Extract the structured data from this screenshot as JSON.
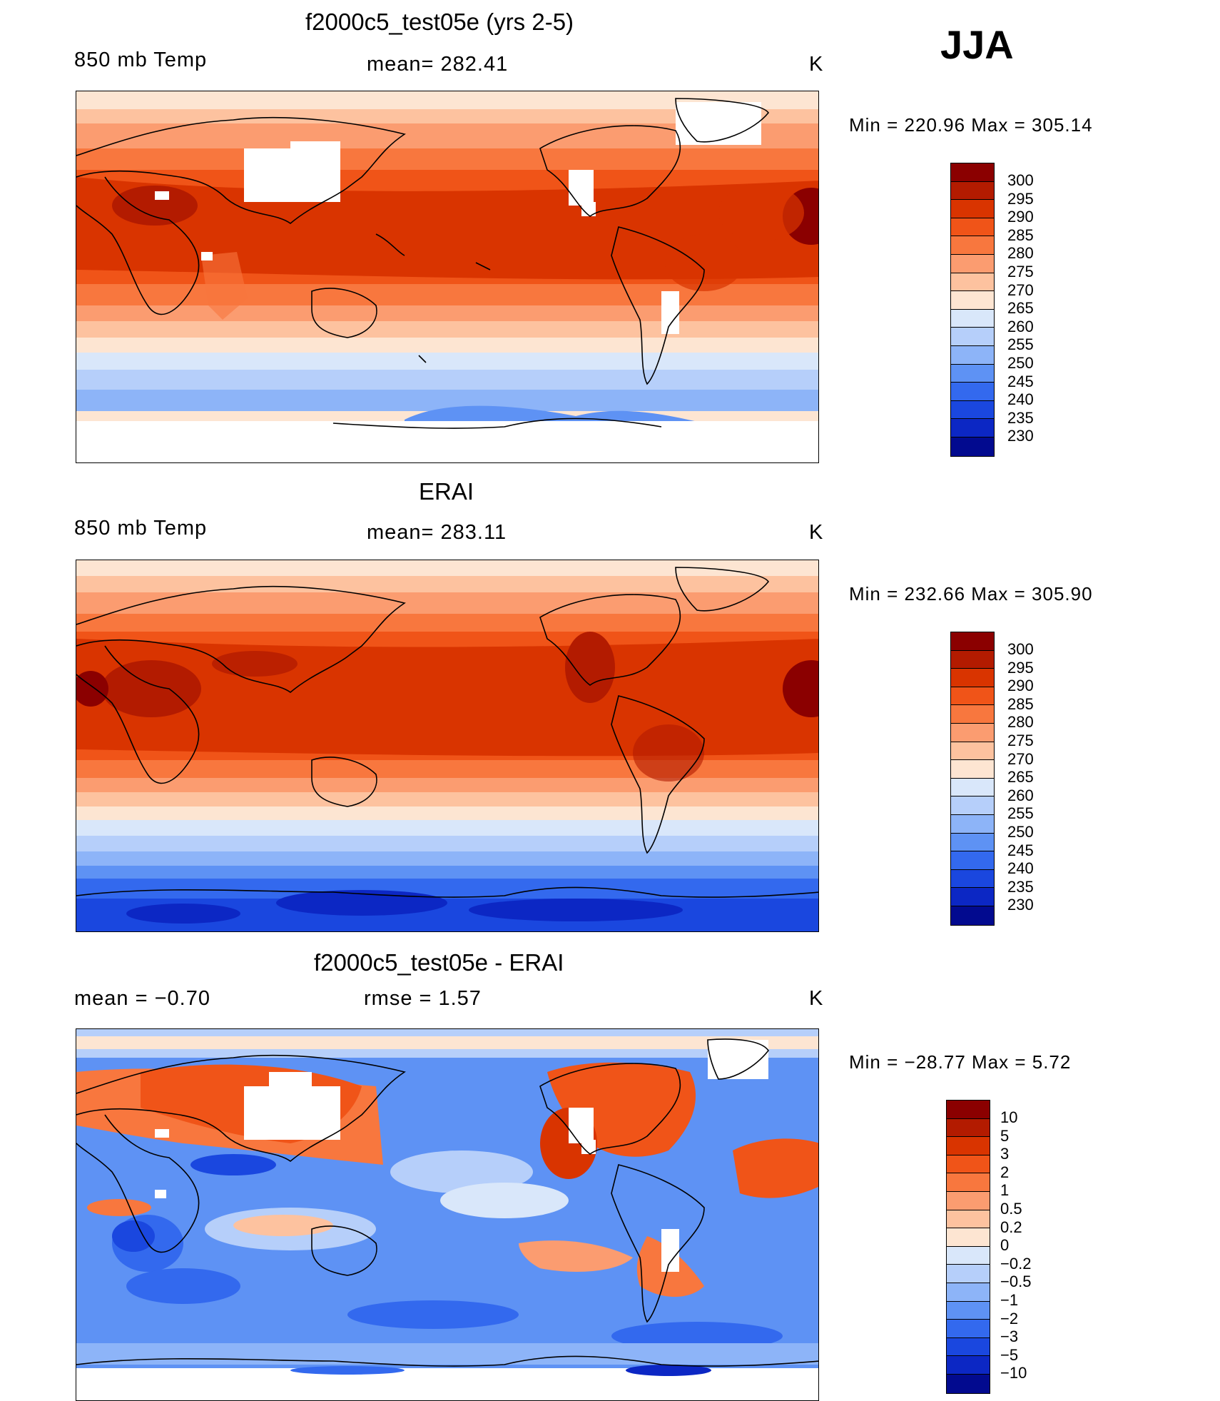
{
  "season": "JJA",
  "panels": [
    {
      "id": "model",
      "title": "f2000c5_test05e (yrs 2-5)",
      "left_label": "850 mb Temp",
      "center_label": "mean= 282.41",
      "units": "K",
      "minmax": "Min  =  220.96  Max  =  305.14",
      "colorbar": {
        "labels": [
          "300",
          "295",
          "290",
          "285",
          "280",
          "275",
          "270",
          "265",
          "260",
          "255",
          "250",
          "245",
          "240",
          "235",
          "230"
        ],
        "colors": [
          "#8b0000",
          "#b31b00",
          "#d93400",
          "#f05418",
          "#f8773e",
          "#fb9c70",
          "#fdc29f",
          "#fde5d2",
          "#d9e7fa",
          "#b6cffa",
          "#8db4f8",
          "#5e92f4",
          "#3369ee",
          "#1a47df",
          "#0c27c4",
          "#020a8f"
        ]
      }
    },
    {
      "id": "obs",
      "title": "ERAI",
      "left_label": "850 mb Temp",
      "center_label": "mean= 283.11",
      "units": "K",
      "minmax": "Min  =  232.66  Max  =  305.90",
      "colorbar": {
        "labels": [
          "300",
          "295",
          "290",
          "285",
          "280",
          "275",
          "270",
          "265",
          "260",
          "255",
          "250",
          "245",
          "240",
          "235",
          "230"
        ],
        "colors": [
          "#8b0000",
          "#b31b00",
          "#d93400",
          "#f05418",
          "#f8773e",
          "#fb9c70",
          "#fdc29f",
          "#fde5d2",
          "#d9e7fa",
          "#b6cffa",
          "#8db4f8",
          "#5e92f4",
          "#3369ee",
          "#1a47df",
          "#0c27c4",
          "#020a8f"
        ]
      }
    },
    {
      "id": "diff",
      "title": "f2000c5_test05e - ERAI",
      "left_label": "mean =    −0.70",
      "center_label": "rmse =     1.57",
      "units": "K",
      "minmax": "Min  =  −28.77  Max  =       5.72",
      "colorbar": {
        "labels": [
          "10",
          "5",
          "3",
          "2",
          "1",
          "0.5",
          "0.2",
          "0",
          "−0.2",
          "−0.5",
          "−1",
          "−2",
          "−3",
          "−5",
          "−10"
        ],
        "colors": [
          "#8b0000",
          "#b31b00",
          "#d93400",
          "#f05418",
          "#f8773e",
          "#fb9c70",
          "#fdc29f",
          "#fde5d2",
          "#d9e7fa",
          "#b6cffa",
          "#8db4f8",
          "#5e92f4",
          "#3369ee",
          "#1a47df",
          "#0c27c4",
          "#020a8f"
        ]
      }
    }
  ]
}
